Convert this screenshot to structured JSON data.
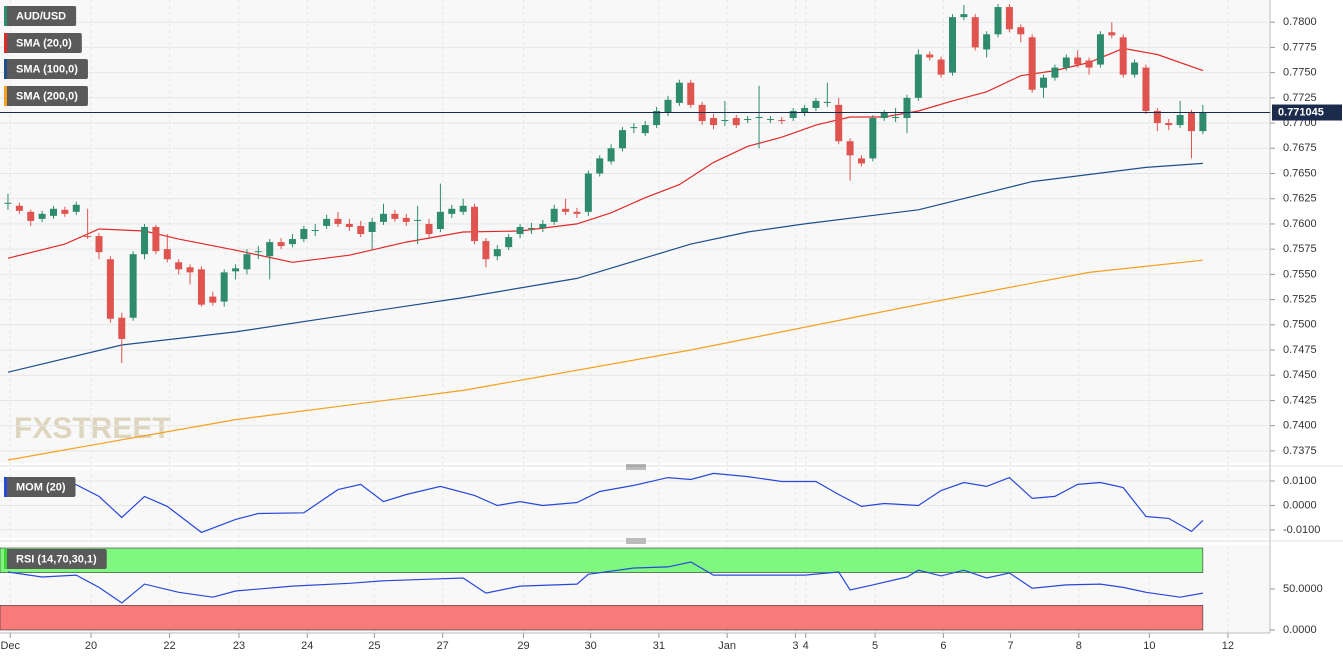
{
  "chart_data": [
    {
      "type": "candlestick",
      "watermark": "FXSTREET",
      "ohlc": {
        "name": "AUD/USD",
        "legend_color": "#2e8b6e",
        "up_color": "#2e8b6e",
        "down_color": "#e0544f",
        "open": [
          0.762,
          0.7618,
          0.7612,
          0.7605,
          0.7608,
          0.7614,
          0.7612,
          0.7588,
          0.7588,
          0.7565,
          0.7507,
          0.7507,
          0.757,
          0.7597,
          0.7575,
          0.7562,
          0.7557,
          0.7555,
          0.7528,
          0.7523,
          0.7553,
          0.7555,
          0.7572,
          0.7568,
          0.7582,
          0.758,
          0.7585,
          0.7593,
          0.7598,
          0.7605,
          0.76,
          0.7598,
          0.7592,
          0.7602,
          0.761,
          0.7606,
          0.7603,
          0.76,
          0.7595,
          0.761,
          0.7612,
          0.7617,
          0.7583,
          0.7568,
          0.7577,
          0.759,
          0.7595,
          0.7596,
          0.7602,
          0.7615,
          0.7612,
          0.7612,
          0.765,
          0.7662,
          0.7675,
          0.7695,
          0.769,
          0.7698,
          0.771,
          0.772,
          0.774,
          0.7718,
          0.7705,
          0.7702,
          0.7705,
          0.7703,
          0.7705,
          0.7703,
          0.7703,
          0.7705,
          0.771,
          0.7715,
          0.772,
          0.7718,
          0.7682,
          0.7665,
          0.7665,
          0.7705,
          0.7705,
          0.7705,
          0.7725,
          0.7768,
          0.7763,
          0.775,
          0.7805,
          0.7805,
          0.7773,
          0.7788,
          0.7815,
          0.7795,
          0.7785,
          0.7735,
          0.7745,
          0.7755,
          0.7765,
          0.7762,
          0.7758,
          0.779,
          0.7785,
          0.7748,
          0.7755,
          0.7712,
          0.77,
          0.7698,
          0.771,
          0.7692
        ],
        "high": [
          0.763,
          0.7621,
          0.7614,
          0.7613,
          0.7618,
          0.7617,
          0.7622,
          0.7615,
          0.7591,
          0.7568,
          0.7512,
          0.7573,
          0.76,
          0.7599,
          0.759,
          0.7565,
          0.756,
          0.7558,
          0.7533,
          0.7555,
          0.756,
          0.7575,
          0.7578,
          0.7585,
          0.7586,
          0.759,
          0.7598,
          0.76,
          0.7609,
          0.7612,
          0.7605,
          0.7603,
          0.7606,
          0.762,
          0.7614,
          0.761,
          0.7618,
          0.7605,
          0.764,
          0.7619,
          0.7625,
          0.762,
          0.7586,
          0.7579,
          0.759,
          0.76,
          0.7601,
          0.7604,
          0.7619,
          0.7625,
          0.7616,
          0.7653,
          0.7668,
          0.7679,
          0.7696,
          0.77,
          0.7702,
          0.7716,
          0.7727,
          0.7743,
          0.7743,
          0.7721,
          0.7709,
          0.7722,
          0.7708,
          0.7707,
          0.7737,
          0.7707,
          0.7706,
          0.7715,
          0.7718,
          0.7725,
          0.774,
          0.7725,
          0.7685,
          0.7668,
          0.7708,
          0.7713,
          0.7715,
          0.7728,
          0.7773,
          0.7771,
          0.7766,
          0.7808,
          0.7817,
          0.7808,
          0.7791,
          0.7818,
          0.7818,
          0.7798,
          0.7788,
          0.7748,
          0.7758,
          0.7768,
          0.7772,
          0.7765,
          0.7791,
          0.78,
          0.7788,
          0.7763,
          0.7758,
          0.7715,
          0.7704,
          0.7722,
          0.7713,
          0.7718
        ],
        "low": [
          0.7614,
          0.761,
          0.7598,
          0.7602,
          0.7605,
          0.7607,
          0.7609,
          0.7585,
          0.7565,
          0.7502,
          0.7462,
          0.7504,
          0.7565,
          0.757,
          0.7562,
          0.755,
          0.754,
          0.7518,
          0.7519,
          0.7518,
          0.7545,
          0.755,
          0.7565,
          0.7545,
          0.7575,
          0.7577,
          0.7582,
          0.7588,
          0.7595,
          0.7597,
          0.7593,
          0.7587,
          0.7575,
          0.7599,
          0.7602,
          0.7598,
          0.758,
          0.7585,
          0.7592,
          0.7606,
          0.7609,
          0.758,
          0.7557,
          0.7564,
          0.7574,
          0.7586,
          0.759,
          0.7592,
          0.7599,
          0.7609,
          0.7606,
          0.7608,
          0.7647,
          0.7659,
          0.7672,
          0.769,
          0.7687,
          0.7695,
          0.7707,
          0.7717,
          0.7715,
          0.7698,
          0.7694,
          0.7697,
          0.7695,
          0.77,
          0.7675,
          0.77,
          0.7699,
          0.7702,
          0.7707,
          0.7712,
          0.7716,
          0.7679,
          0.7643,
          0.7657,
          0.7662,
          0.7702,
          0.7701,
          0.769,
          0.7722,
          0.7762,
          0.7745,
          0.7747,
          0.7802,
          0.7772,
          0.7765,
          0.7785,
          0.779,
          0.778,
          0.773,
          0.7725,
          0.7742,
          0.7752,
          0.7755,
          0.7748,
          0.7755,
          0.7784,
          0.7745,
          0.7745,
          0.7709,
          0.7692,
          0.7693,
          0.7695,
          0.7665,
          0.7689
        ],
        "close": [
          0.7621,
          0.7613,
          0.7603,
          0.761,
          0.7615,
          0.761,
          0.7619,
          0.7587,
          0.7572,
          0.7506,
          0.7486,
          0.757,
          0.7597,
          0.7573,
          0.7565,
          0.7555,
          0.7552,
          0.752,
          0.7522,
          0.7552,
          0.7556,
          0.757,
          0.7573,
          0.7582,
          0.7578,
          0.7585,
          0.7595,
          0.7594,
          0.7605,
          0.76,
          0.7597,
          0.759,
          0.7602,
          0.761,
          0.7605,
          0.7602,
          0.7604,
          0.759,
          0.7612,
          0.7615,
          0.7618,
          0.7583,
          0.7565,
          0.7575,
          0.7587,
          0.7597,
          0.7596,
          0.76,
          0.7615,
          0.7612,
          0.761,
          0.765,
          0.7665,
          0.7675,
          0.7693,
          0.7696,
          0.7698,
          0.7712,
          0.7723,
          0.774,
          0.7718,
          0.7702,
          0.7698,
          0.7703,
          0.7698,
          0.7704,
          0.7706,
          0.7704,
          0.7702,
          0.7712,
          0.7715,
          0.7722,
          0.7721,
          0.7682,
          0.7668,
          0.766,
          0.7705,
          0.771,
          0.7706,
          0.7725,
          0.7768,
          0.7765,
          0.7748,
          0.7805,
          0.7808,
          0.7775,
          0.7788,
          0.7815,
          0.7793,
          0.7788,
          0.7733,
          0.7745,
          0.7755,
          0.7765,
          0.7758,
          0.7755,
          0.7788,
          0.7787,
          0.7748,
          0.776,
          0.7712,
          0.77,
          0.7698,
          0.7708,
          0.7692,
          0.771
        ]
      },
      "series": [
        {
          "name": "SMA (20,0)",
          "color": "#e02a2a",
          "x": [
            0,
            5,
            8,
            12,
            15,
            20,
            25,
            30,
            35,
            40,
            45,
            50,
            53,
            56,
            59,
            62,
            65,
            68,
            71,
            74,
            77,
            80,
            83,
            86,
            89,
            92,
            95,
            98,
            101,
            105
          ],
          "values": [
            0.7566,
            0.758,
            0.7595,
            0.7593,
            0.7585,
            0.7574,
            0.7562,
            0.7569,
            0.7582,
            0.7592,
            0.7593,
            0.76,
            0.7611,
            0.7626,
            0.7639,
            0.7661,
            0.7677,
            0.7686,
            0.7698,
            0.7706,
            0.7706,
            0.7712,
            0.7722,
            0.7731,
            0.7747,
            0.7752,
            0.776,
            0.7774,
            0.7768,
            0.7752
          ]
        },
        {
          "name": "SMA (100,0)",
          "color": "#1f4e8c",
          "x": [
            0,
            10,
            20,
            30,
            40,
            50,
            60,
            65,
            70,
            80,
            90,
            100,
            105
          ],
          "values": [
            0.7453,
            0.748,
            0.7493,
            0.751,
            0.7527,
            0.7546,
            0.758,
            0.7592,
            0.76,
            0.7614,
            0.7642,
            0.7656,
            0.766
          ]
        },
        {
          "name": "SMA (200,0)",
          "color": "#f5a020",
          "x": [
            0,
            20,
            40,
            60,
            80,
            95,
            105
          ],
          "values": [
            0.7366,
            0.7406,
            0.7435,
            0.7475,
            0.752,
            0.7552,
            0.7564
          ]
        }
      ],
      "last_price": 0.771045,
      "xlim": [
        -0.7,
        110.9
      ],
      "xticks": [
        {
          "value": 0.2,
          "label": "Dec"
        },
        {
          "value": 7.3,
          "label": "20"
        },
        {
          "value": 14.2,
          "label": "22"
        },
        {
          "value": 20.3,
          "label": "23"
        },
        {
          "value": 26.3,
          "label": "24"
        },
        {
          "value": 32.2,
          "label": "25"
        },
        {
          "value": 38.2,
          "label": "27"
        },
        {
          "value": 45.3,
          "label": "29"
        },
        {
          "value": 51.2,
          "label": "30"
        },
        {
          "value": 57.2,
          "label": "31"
        },
        {
          "value": 63.2,
          "label": "Jan"
        },
        {
          "value": 69.2,
          "label": "3"
        },
        {
          "value": 70.1,
          "label": "4"
        },
        {
          "value": 76.2,
          "label": "5"
        },
        {
          "value": 82.2,
          "label": "6"
        },
        {
          "value": 88.1,
          "label": "7"
        },
        {
          "value": 94.1,
          "label": "8"
        },
        {
          "value": 100.3,
          "label": "10"
        },
        {
          "value": 107.2,
          "label": "12"
        }
      ],
      "ylim": [
        0.7363,
        0.7822
      ],
      "yticks": [
        {
          "value": 0.7375,
          "label": "0.7375"
        },
        {
          "value": 0.74,
          "label": "0.7400"
        },
        {
          "value": 0.7425,
          "label": "0.7425"
        },
        {
          "value": 0.745,
          "label": "0.7450"
        },
        {
          "value": 0.7475,
          "label": "0.7475"
        },
        {
          "value": 0.75,
          "label": "0.7500"
        },
        {
          "value": 0.7525,
          "label": "0.7525"
        },
        {
          "value": 0.755,
          "label": "0.7550"
        },
        {
          "value": 0.7575,
          "label": "0.7575"
        },
        {
          "value": 0.76,
          "label": "0.7600"
        },
        {
          "value": 0.7625,
          "label": "0.7625"
        },
        {
          "value": 0.765,
          "label": "0.7650"
        },
        {
          "value": 0.7675,
          "label": "0.7675"
        },
        {
          "value": 0.77,
          "label": "0.7700"
        },
        {
          "value": 0.7725,
          "label": "0.7725"
        },
        {
          "value": 0.775,
          "label": "0.7750"
        },
        {
          "value": 0.7775,
          "label": "0.7775"
        },
        {
          "value": 0.78,
          "label": "0.7800"
        }
      ],
      "grid": true
    },
    {
      "type": "line",
      "series": [
        {
          "name": "MOM (20)",
          "color": "#2848d8",
          "x": [
            0,
            3,
            6,
            8,
            10,
            12,
            14,
            17,
            20,
            22,
            26,
            29,
            31,
            33,
            35,
            38,
            41,
            43,
            45,
            47,
            50,
            52,
            55,
            58,
            60,
            62,
            65,
            68,
            71,
            73,
            75,
            77,
            80,
            82,
            84,
            86,
            88,
            90,
            92,
            94,
            96,
            98,
            100,
            102,
            104,
            105
          ],
          "values": [
            0.0106,
            0.0106,
            0.0085,
            0.0037,
            -0.0049,
            0.0037,
            -0.0004,
            -0.011,
            -0.0057,
            -0.0033,
            -0.003,
            0.0065,
            0.0086,
            0.0016,
            0.0045,
            0.0078,
            0.0041,
            0,
            0.0016,
            0,
            0.0012,
            0.0057,
            0.0082,
            0.0114,
            0.0106,
            0.0131,
            0.0118,
            0.0098,
            0.0098,
            0.0045,
            -0.0004,
            0.0008,
            0,
            0.0061,
            0.0094,
            0.0078,
            0.0114,
            0.0029,
            0.0037,
            0.0086,
            0.0094,
            0.0073,
            -0.0045,
            -0.0053,
            -0.0106,
            -0.0061
          ]
        }
      ],
      "ylim": [
        -0.0133,
        0.0145
      ],
      "yticks": [
        {
          "value": 0.01,
          "label": "0.0100"
        },
        {
          "value": 0,
          "label": "0.0000"
        },
        {
          "value": -0.01,
          "label": "-0.0100"
        }
      ],
      "grid": true
    },
    {
      "type": "line",
      "bands": [
        {
          "from": 70,
          "to": 100,
          "color": "#80f880"
        },
        {
          "from": 0,
          "to": 30,
          "color": "#f87a7a"
        }
      ],
      "series": [
        {
          "name": "RSI (14,70,30,1)",
          "color": "#2848d8",
          "legend_color": "#3ad83a",
          "x": [
            0,
            3,
            6,
            8,
            10,
            12,
            15,
            18,
            20,
            25,
            30,
            33,
            37,
            40,
            42,
            45,
            50,
            51,
            55,
            58,
            60,
            62,
            65,
            70,
            73,
            74,
            76,
            79,
            80,
            82,
            84,
            86,
            88,
            90,
            93,
            96,
            98,
            100,
            103,
            105
          ],
          "values": [
            70.7,
            64.6,
            67,
            52,
            33,
            56,
            46,
            40,
            47.5,
            53.6,
            57,
            60,
            62,
            63.4,
            45,
            53.6,
            56,
            68,
            75.6,
            77,
            83,
            67,
            67,
            67,
            70.7,
            48.8,
            55,
            64.6,
            73,
            66,
            73,
            63.4,
            69.5,
            51,
            55,
            56,
            52,
            46,
            40,
            45
          ]
        }
      ],
      "ylim": [
        -3.7,
        103.7
      ],
      "yticks": [
        {
          "value": 50,
          "label": "50.0000"
        },
        {
          "value": 0,
          "label": "0.0000"
        }
      ],
      "grid": false
    }
  ]
}
